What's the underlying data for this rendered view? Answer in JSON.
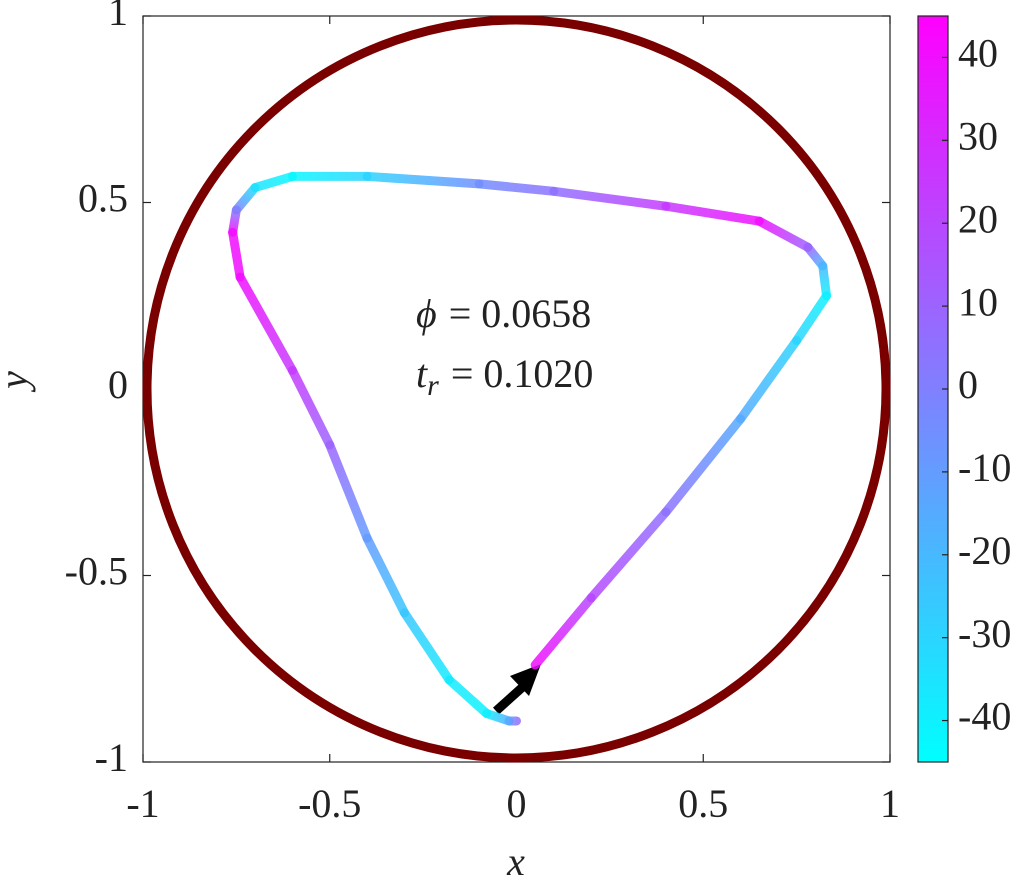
{
  "chart_data": {
    "type": "line",
    "xlabel": "x",
    "ylabel": "y",
    "xlim": [
      -1,
      1
    ],
    "ylim": [
      -1,
      1
    ],
    "xticks": [
      -1,
      -0.5,
      0,
      0.5,
      1
    ],
    "yticks": [
      -1,
      -0.5,
      0,
      0.5,
      1
    ],
    "boundary_color": "#7a0000",
    "colormap": "cool",
    "clim": [
      -45,
      45
    ],
    "cticks": [
      -40,
      -30,
      -20,
      -10,
      0,
      10,
      20,
      30,
      40
    ],
    "annotations": [
      {
        "symbol": "ϕ",
        "text": "= 0.0658"
      },
      {
        "symbol": "t",
        "subscript": "r",
        "text": "= 0.1020"
      }
    ],
    "series": [
      {
        "x": [
          0.05,
          0.2,
          0.4,
          0.6,
          0.75,
          0.83,
          0.82,
          0.78,
          0.65,
          0.4,
          0.1,
          -0.1,
          -0.4,
          -0.6,
          -0.7,
          -0.75,
          -0.76,
          -0.74,
          -0.6,
          -0.5,
          -0.4,
          -0.3,
          -0.18,
          -0.08,
          -0.02,
          0.0
        ],
        "y": [
          -0.74,
          -0.56,
          -0.33,
          -0.08,
          0.13,
          0.25,
          0.33,
          0.38,
          0.45,
          0.49,
          0.53,
          0.55,
          0.57,
          0.57,
          0.54,
          0.48,
          0.42,
          0.3,
          0.05,
          -0.15,
          -0.4,
          -0.6,
          -0.78,
          -0.87,
          -0.89,
          -0.89
        ],
        "c": [
          40,
          20,
          5,
          -15,
          -30,
          -40,
          -20,
          10,
          40,
          25,
          5,
          -5,
          -30,
          -42,
          -35,
          0,
          40,
          40,
          25,
          10,
          -10,
          -25,
          -38,
          -40,
          -15,
          5
        ]
      }
    ]
  }
}
